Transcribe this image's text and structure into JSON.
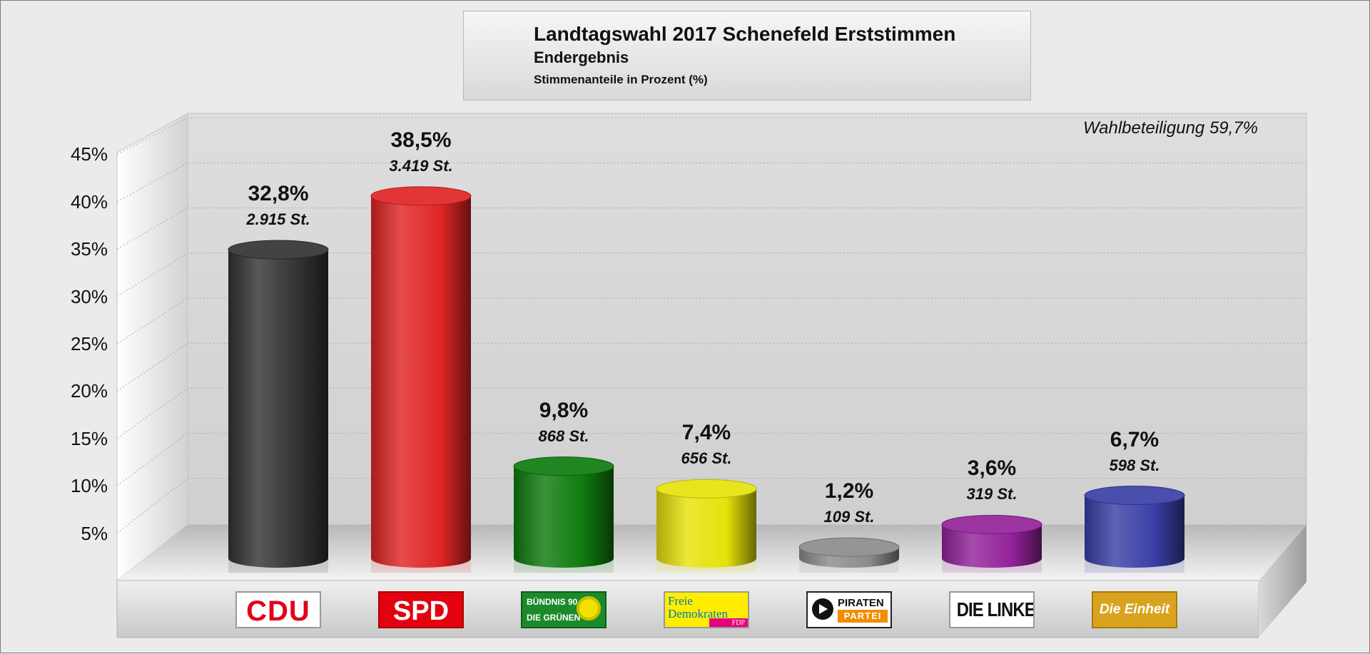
{
  "header": {
    "title": "Landtagswahl 2017 Schenefeld Erststimmen",
    "subtitle": "Endergebnis",
    "unit_label": "Stimmenanteile in Prozent (%)"
  },
  "turnout_label": "Wahlbeteiligung 59,7%",
  "chart_data": {
    "type": "bar",
    "title": "Landtagswahl 2017 Schenefeld Erststimmen",
    "subtitle": "Endergebnis",
    "ylabel": "Stimmenanteile in Prozent (%)",
    "ylim": [
      0,
      45
    ],
    "yticks": [
      "5%",
      "10%",
      "15%",
      "20%",
      "25%",
      "30%",
      "35%",
      "40%",
      "45%"
    ],
    "grid": true,
    "categories": [
      "CDU",
      "SPD",
      "BÜNDNIS 90 DIE GRÜNEN",
      "Freie Demokraten FDP",
      "PIRATEN PARTEI",
      "DIE LINKE.",
      "Die Einheit"
    ],
    "values": [
      32.8,
      38.5,
      9.8,
      7.4,
      1.2,
      3.6,
      6.7
    ],
    "value_labels": [
      "32,8%",
      "38,5%",
      "9,8%",
      "7,4%",
      "1,2%",
      "3,6%",
      "6,7%"
    ],
    "votes": [
      2915,
      3419,
      868,
      656,
      109,
      319,
      598
    ],
    "vote_labels": [
      "2.915 St.",
      "3.419 St.",
      "868 St.",
      "656 St.",
      "109 St.",
      "319 St.",
      "598 St."
    ],
    "colors": [
      "#333333",
      "#e02525",
      "#0e7a0e",
      "#e6e20a",
      "#8c8c8c",
      "#93229a",
      "#3a3fa6"
    ]
  },
  "logos": {
    "cdu": "CDU",
    "spd": "SPD",
    "gruene_1": "BÜNDNIS 90",
    "gruene_2": "DIE GRÜNEN",
    "fdp_1": "Freie",
    "fdp_2": "Demokraten",
    "fdp_3": "FDP",
    "piraten_1": "PIRATEN",
    "piraten_2": "PARTEI",
    "linke": "DIE LINKE.",
    "einheit": "Die Einheit"
  }
}
